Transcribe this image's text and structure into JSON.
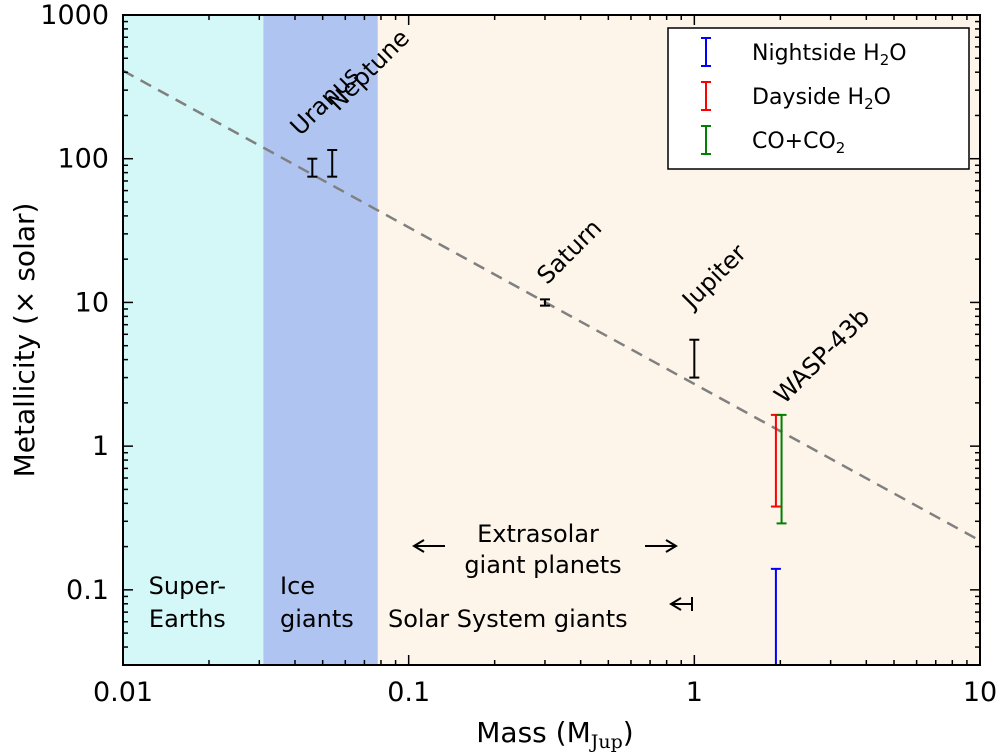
{
  "chart_data": {
    "type": "scatter",
    "xlabel": "Mass (M",
    "xlabel_sub": "Jup",
    "xlabel_close": ")",
    "ylabel": "Metallicity (× solar)",
    "x_scale": "log",
    "y_scale": "log",
    "xlim": [
      0.01,
      10
    ],
    "ylim": [
      0.03,
      1000
    ],
    "x_ticks": [
      {
        "value": 0.01,
        "label": "0.01"
      },
      {
        "value": 0.1,
        "label": "0.1"
      },
      {
        "value": 1,
        "label": "1"
      },
      {
        "value": 10,
        "label": "10"
      }
    ],
    "y_ticks": [
      {
        "value": 0.1,
        "label": "0.1"
      },
      {
        "value": 1,
        "label": "1"
      },
      {
        "value": 10,
        "label": "10"
      },
      {
        "value": 100,
        "label": "100"
      },
      {
        "value": 1000,
        "label": "1000"
      }
    ],
    "regions": [
      {
        "x0": 0.01,
        "x1": 0.031,
        "color": "#d4f8f8",
        "label_lines": [
          "Super-",
          "Earths"
        ]
      },
      {
        "x0": 0.031,
        "x1": 0.078,
        "color": "#b0c4f2",
        "label_lines": [
          "Ice",
          "giants"
        ]
      },
      {
        "x0": 0.078,
        "x1": 10,
        "color": "#fdf5ea",
        "label_lines": [
          "Solar System giants"
        ]
      }
    ],
    "trend_line": {
      "x": [
        0.01,
        10
      ],
      "y": [
        410,
        0.22
      ],
      "color": "#808080",
      "style": "dashed"
    },
    "solar_system": [
      {
        "name": "Uranus",
        "x": 0.046,
        "y_low": 75,
        "y_high": 100,
        "color": "#000000"
      },
      {
        "name": "Neptune",
        "x": 0.054,
        "y_low": 75,
        "y_high": 115,
        "color": "#000000"
      },
      {
        "name": "Saturn",
        "x": 0.3,
        "y_low": 9.5,
        "y_high": 10.5,
        "color": "#000000"
      },
      {
        "name": "Jupiter",
        "x": 1.0,
        "y_low": 3.0,
        "y_high": 5.5,
        "color": "#000000"
      }
    ],
    "planet_label": {
      "name": "WASP-43b",
      "x": 2.0,
      "y": 1.65
    },
    "series": [
      {
        "name": "Nightside H₂O",
        "color": "#0000ff",
        "x": 1.93,
        "y_low": 0.03,
        "y_high": 0.14
      },
      {
        "name": "Dayside H₂O",
        "color": "#ff0000",
        "x": 1.93,
        "y_low": 0.38,
        "y_high": 1.65
      },
      {
        "name": "CO+CO₂",
        "color": "#008000",
        "x": 2.02,
        "y_low": 0.29,
        "y_high": 1.65
      }
    ],
    "annotations": {
      "extrasolar_lines": [
        "Extrasolar",
        "giant planets"
      ]
    },
    "legend": {
      "placement": "top-right",
      "entries": [
        {
          "name": "Nightside H",
          "sub": "2",
          "tail": "O",
          "color": "#0000ff"
        },
        {
          "name": "Dayside H",
          "sub": "2",
          "tail": "O",
          "color": "#ff0000"
        },
        {
          "name": "CO+CO",
          "sub": "2",
          "tail": "",
          "color": "#008000"
        }
      ]
    }
  }
}
